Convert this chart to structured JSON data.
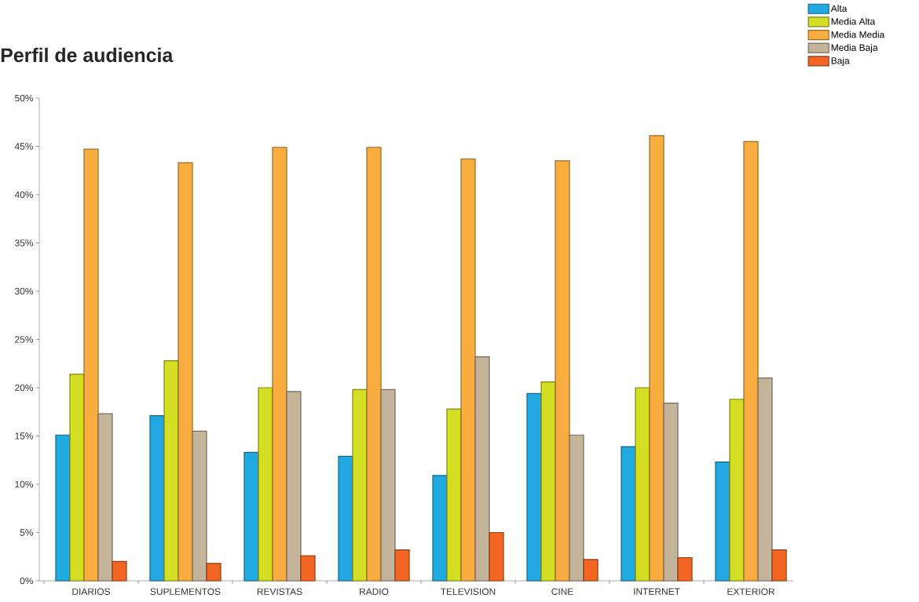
{
  "chart_data": {
    "type": "bar",
    "title": "Perfil de audiencia",
    "categories": [
      "DIARIOS",
      "SUPLEMENTOS",
      "REVISTAS",
      "RADIO",
      "TELEVISION",
      "CINE",
      "INTERNET",
      "EXTERIOR"
    ],
    "series": [
      {
        "name": "Alta",
        "color": "#22a8e0",
        "values": [
          15.1,
          17.1,
          13.3,
          12.9,
          10.9,
          19.4,
          13.9,
          12.3
        ]
      },
      {
        "name": "Media Alta",
        "color": "#d4df23",
        "values": [
          21.4,
          22.8,
          20.0,
          19.8,
          17.8,
          20.6,
          20.0,
          18.8
        ]
      },
      {
        "name": "Media Media",
        "color": "#fbae40",
        "values": [
          44.7,
          43.3,
          44.9,
          44.9,
          43.7,
          43.5,
          46.1,
          45.5
        ]
      },
      {
        "name": "Media Baja",
        "color": "#c4b49a",
        "values": [
          17.3,
          15.5,
          19.6,
          19.8,
          23.2,
          15.1,
          18.4,
          21.0
        ]
      },
      {
        "name": "Baja",
        "color": "#f26522",
        "values": [
          2.0,
          1.8,
          2.6,
          3.2,
          5.0,
          2.2,
          2.4,
          3.2
        ]
      }
    ],
    "ylim": [
      0,
      50
    ],
    "yticks": [
      {
        "value": 0,
        "label": "0%"
      },
      {
        "value": 5,
        "label": "5%"
      },
      {
        "value": 10,
        "label": "10%"
      },
      {
        "value": 15,
        "label": "15%"
      },
      {
        "value": 20,
        "label": "20%"
      },
      {
        "value": 25,
        "label": "25%"
      },
      {
        "value": 30,
        "label": "30%"
      },
      {
        "value": 35,
        "label": "35%"
      },
      {
        "value": 40,
        "label": "40%"
      },
      {
        "value": 45,
        "label": "45%"
      },
      {
        "value": 50,
        "label": "50%"
      }
    ],
    "grid": false,
    "legend": "top right"
  }
}
